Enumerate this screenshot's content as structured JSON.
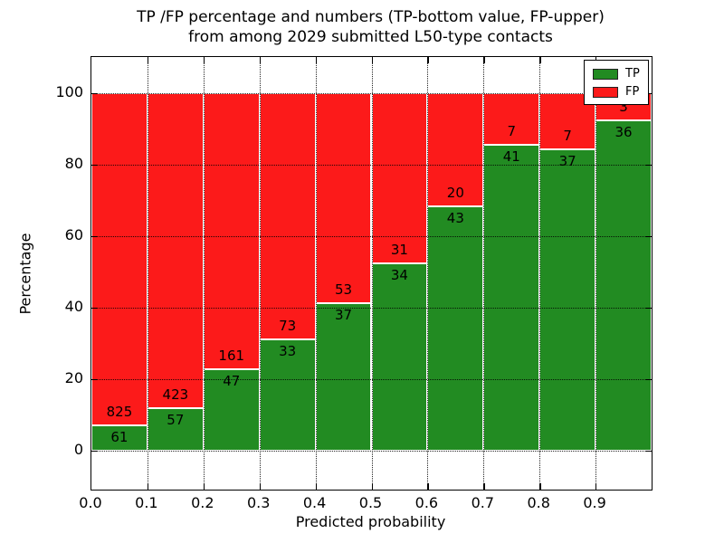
{
  "chart_data": {
    "type": "bar",
    "stacked": true,
    "normalized_to_percent": 100,
    "title_line1": "TP /FP percentage and numbers (TP-bottom value, FP-upper)",
    "title_line2": "from among 2029 submitted L50-type contacts",
    "xlabel": "Predicted probability",
    "ylabel": "Percentage",
    "x_bin_edges": [
      0.0,
      0.1,
      0.2,
      0.3,
      0.4,
      0.5,
      0.6,
      0.7,
      0.8,
      0.9,
      1.0
    ],
    "series": [
      {
        "name": "TP",
        "color": "#228b22",
        "values": [
          61,
          57,
          47,
          33,
          37,
          34,
          43,
          41,
          37,
          36
        ]
      },
      {
        "name": "FP",
        "color": "#fc1a1a",
        "values": [
          825,
          423,
          161,
          73,
          53,
          31,
          20,
          7,
          7,
          3
        ]
      }
    ],
    "x_ticks": [
      "0.0",
      "0.1",
      "0.2",
      "0.3",
      "0.4",
      "0.5",
      "0.6",
      "0.7",
      "0.8",
      "0.9"
    ],
    "y_ticks": [
      "0",
      "20",
      "40",
      "60",
      "80",
      "100"
    ],
    "xlim": [
      0.0,
      1.0
    ],
    "ylim": [
      -11,
      110
    ],
    "grid": "dotted",
    "bar_edge_color": "#ffffff",
    "legend": {
      "position": "upper right",
      "entries": [
        {
          "label": "TP",
          "color": "#228b22"
        },
        {
          "label": "FP",
          "color": "#fc1a1a"
        }
      ]
    }
  }
}
